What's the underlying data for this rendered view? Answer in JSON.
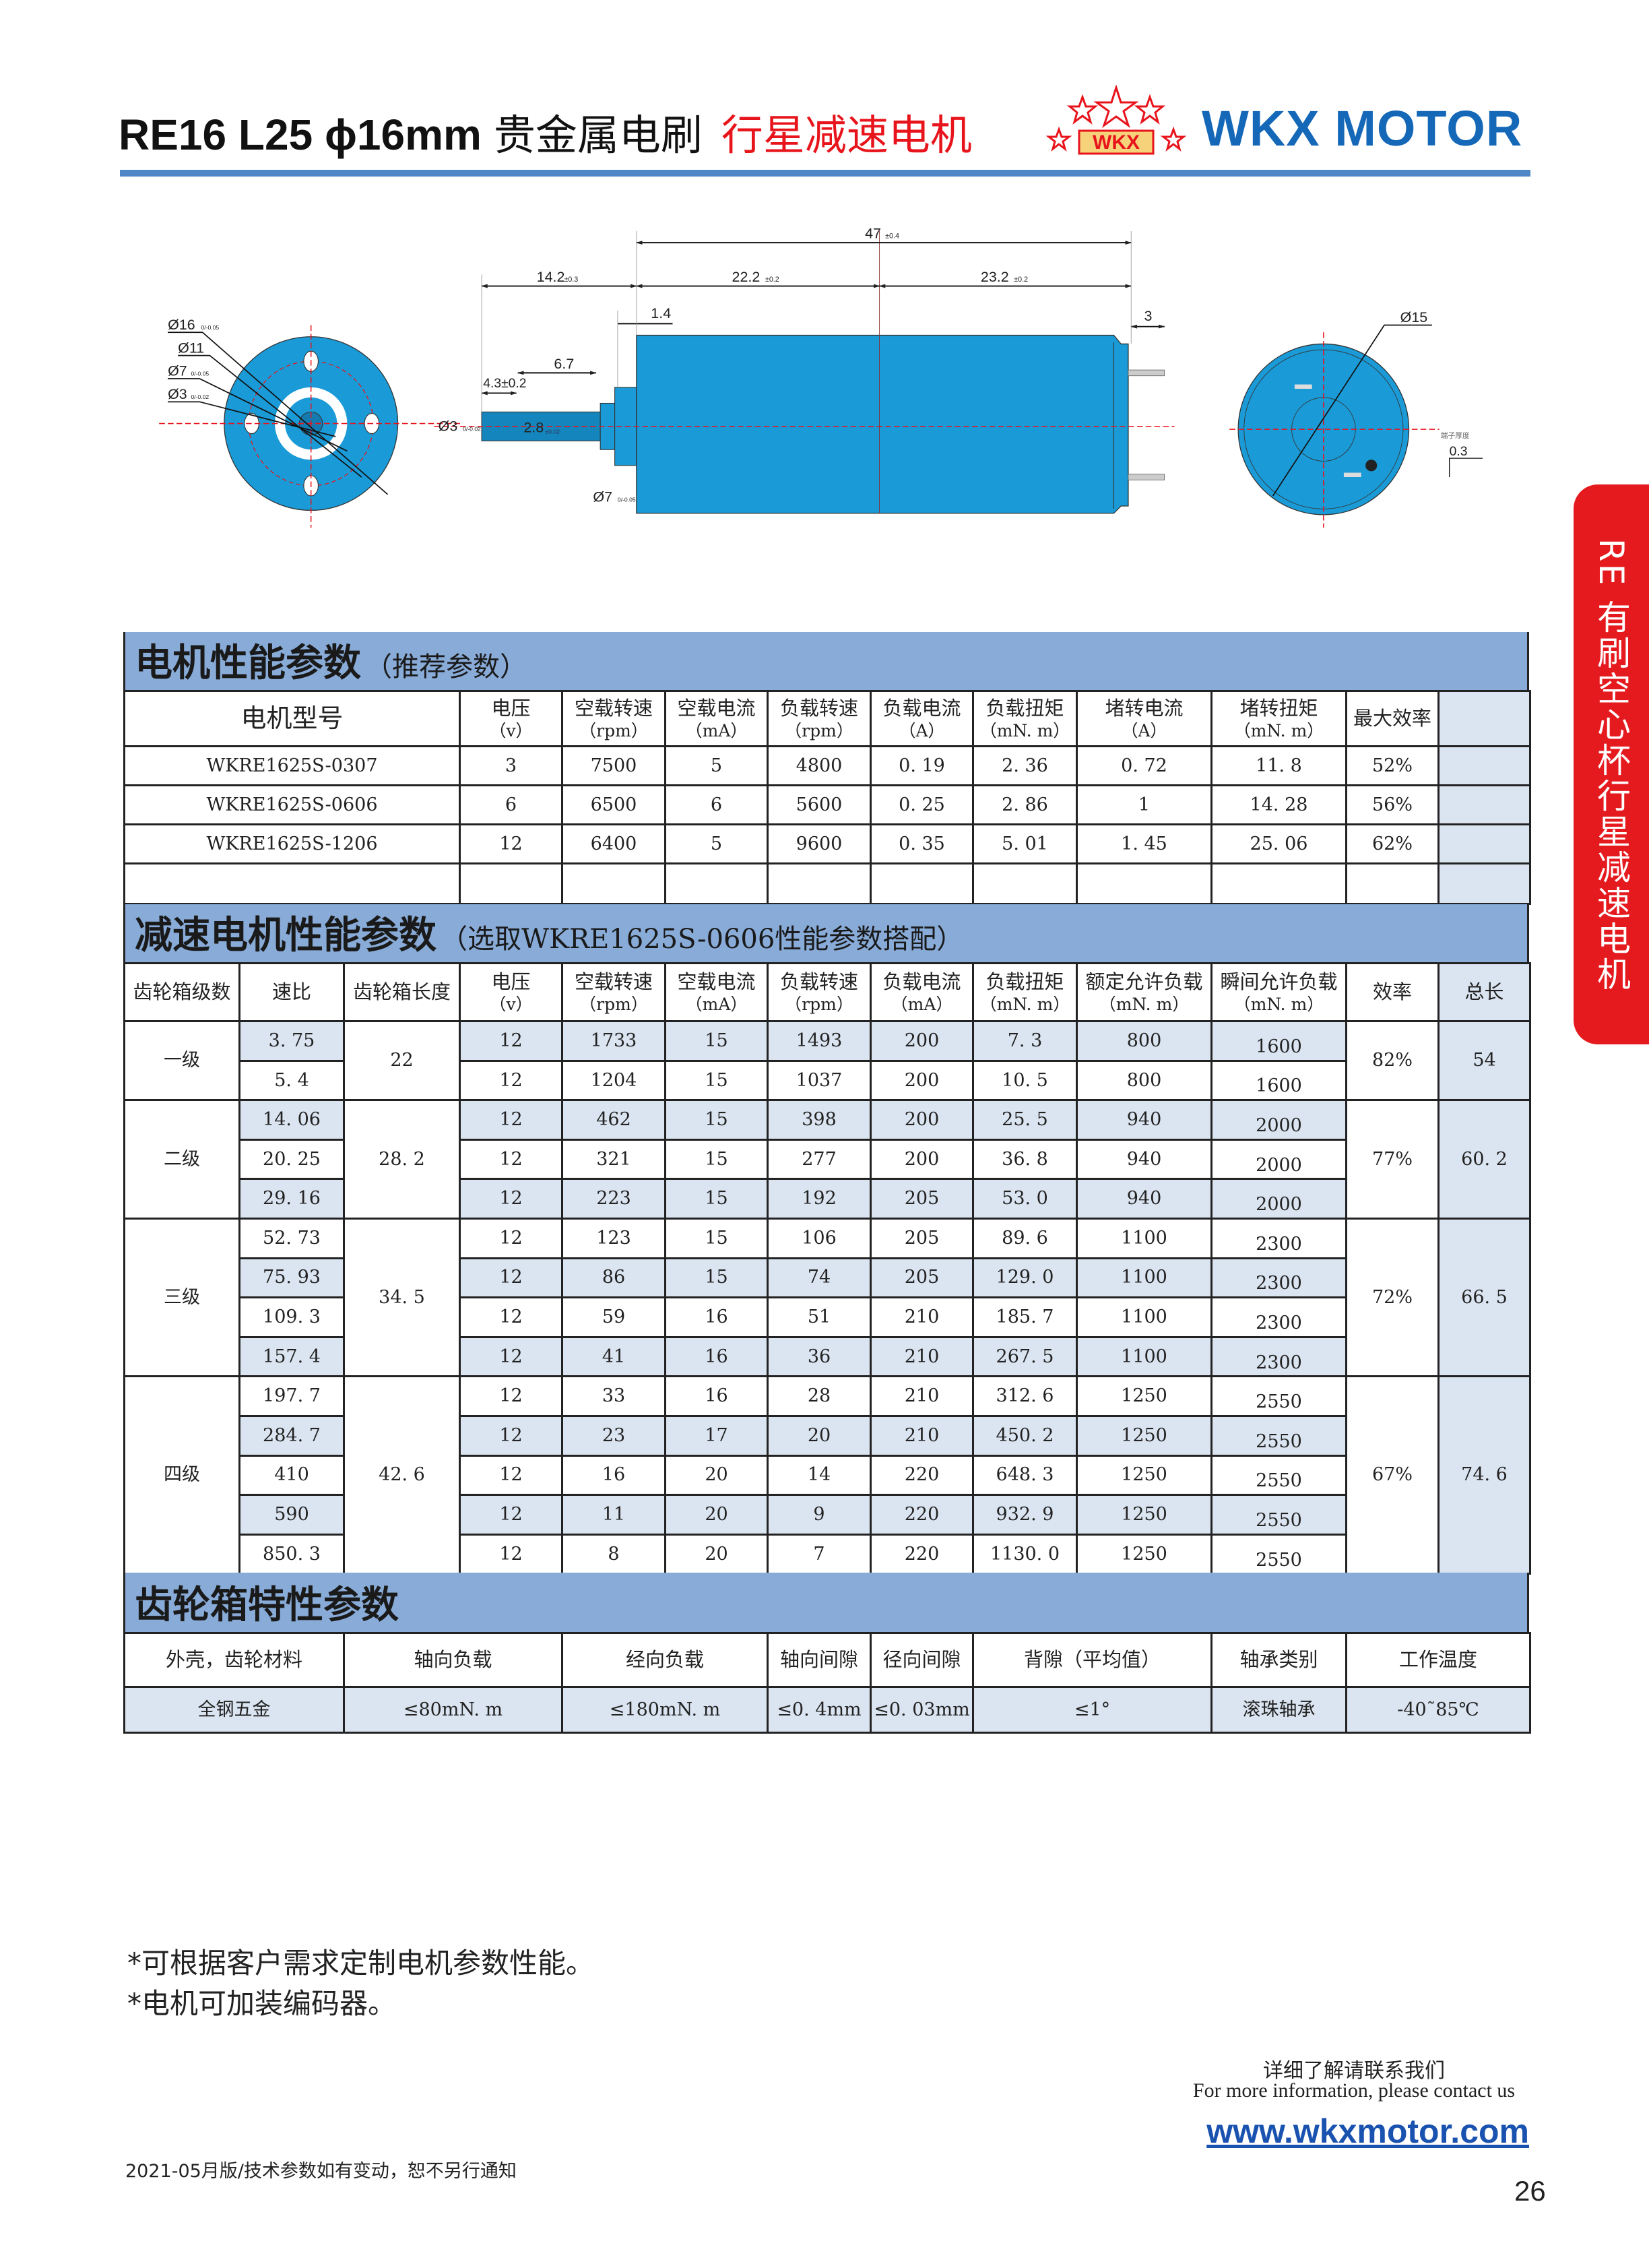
{
  "header": {
    "model": "RE16 L25 ϕ16mm",
    "desc": "贵金属电刷",
    "title_red": "行星减速电机",
    "logo_text": "WKX",
    "brand": "WKX MOTOR",
    "colors": {
      "brand_blue": "#1568b8",
      "accent_red": "#e8141c",
      "rule_blue": "#4f86c6"
    }
  },
  "drawing": {
    "front_view": {
      "d16": "Ø16",
      "d16_tol": "0/-0.05",
      "d11": "Ø11",
      "d7": "Ø7",
      "d7_tol": "0/-0.05",
      "d3": "Ø3",
      "d3_tol": "0/-0.02"
    },
    "side_view": {
      "total_length": "47",
      "total_length_tol": "±0.4",
      "shaft_length": "14.2",
      "shaft_length_tol": "±0.3",
      "section_a": "22.2",
      "section_a_tol": "±0.2",
      "section_b": "23.2",
      "section_b_tol": "±0.2",
      "boss": "1.4",
      "terminal": "3",
      "flat_length": "6.7",
      "flat_start": "4.3±0.2",
      "shaft_dia": "Ø3",
      "shaft_dia_tol": "0/-0.02",
      "flat_width": "2.8",
      "flat_width_tol": "±0.02",
      "boss_dia": "Ø7",
      "boss_dia_tol": "0/-0.05"
    },
    "rear_view": {
      "dia": "Ø15",
      "terminal_thickness_label": "端子厚度",
      "terminal_thickness": "0.3"
    },
    "colors": {
      "body": "#1a9ad6",
      "centerline": "#e8141c"
    }
  },
  "side_tab": {
    "text": "RE 有刷空心杯行星减速电机",
    "color": "#e51a1e"
  },
  "motor_section": {
    "title": "电机性能参数",
    "subtitle": "（推荐参数）",
    "columns": [
      {
        "name": "电机型号",
        "unit": ""
      },
      {
        "name": "电压",
        "unit": "（v）"
      },
      {
        "name": "空载转速",
        "unit": "（rpm）"
      },
      {
        "name": "空载电流",
        "unit": "（mA）"
      },
      {
        "name": "负载转速",
        "unit": "（rpm）"
      },
      {
        "name": "负载电流",
        "unit": "（A）"
      },
      {
        "name": "负载扭矩",
        "unit": "（mN. m）"
      },
      {
        "name": "堵转电流",
        "unit": "（A）"
      },
      {
        "name": "堵转扭矩",
        "unit": "（mN. m）"
      },
      {
        "name": "最大效率",
        "unit": ""
      },
      {
        "name": "",
        "unit": ""
      }
    ],
    "rows": [
      [
        "WKRE1625S-0307",
        "3",
        "7500",
        "5",
        "4800",
        "0. 19",
        "2. 36",
        "0. 72",
        "11. 8",
        "52%",
        ""
      ],
      [
        "WKRE1625S-0606",
        "6",
        "6500",
        "6",
        "5600",
        "0. 25",
        "2. 86",
        "1",
        "14. 28",
        "56%",
        ""
      ],
      [
        "WKRE1625S-1206",
        "12",
        "6400",
        "5",
        "9600",
        "0. 35",
        "5. 01",
        "1. 45",
        "25. 06",
        "62%",
        ""
      ],
      [
        "",
        "",
        "",
        "",
        "",
        "",
        "",
        "",
        "",
        "",
        ""
      ]
    ]
  },
  "gear_section": {
    "title": "减速电机性能参数",
    "subtitle": "（选取WKRE1625S-0606性能参数搭配）",
    "columns": [
      {
        "name": "齿轮箱级数",
        "unit": ""
      },
      {
        "name": "速比",
        "unit": ""
      },
      {
        "name": "齿轮箱长度",
        "unit": ""
      },
      {
        "name": "电压",
        "unit": "（v）"
      },
      {
        "name": "空载转速",
        "unit": "（rpm）"
      },
      {
        "name": "空载电流",
        "unit": "（mA）"
      },
      {
        "name": "负载转速",
        "unit": "（rpm）"
      },
      {
        "name": "负载电流",
        "unit": "（mA）"
      },
      {
        "name": "负载扭矩",
        "unit": "（mN. m）"
      },
      {
        "name": "额定允许负载",
        "unit": "（mN. m）"
      },
      {
        "name": "瞬间允许负载",
        "unit": "（mN. m）"
      },
      {
        "name": "效率",
        "unit": ""
      },
      {
        "name": "总长",
        "unit": ""
      }
    ],
    "stages": [
      {
        "stage": "一级",
        "gearbox_length": "22",
        "efficiency": "82%",
        "total_length": "54",
        "rows": [
          [
            "3. 75",
            "12",
            "1733",
            "15",
            "1493",
            "200",
            "7. 3",
            "800",
            "1600"
          ],
          [
            "5. 4",
            "12",
            "1204",
            "15",
            "1037",
            "200",
            "10. 5",
            "800",
            "1600"
          ]
        ]
      },
      {
        "stage": "二级",
        "gearbox_length": "28. 2",
        "efficiency": "77%",
        "total_length": "60. 2",
        "rows": [
          [
            "14. 06",
            "12",
            "462",
            "15",
            "398",
            "200",
            "25. 5",
            "940",
            "2000"
          ],
          [
            "20. 25",
            "12",
            "321",
            "15",
            "277",
            "200",
            "36. 8",
            "940",
            "2000"
          ],
          [
            "29. 16",
            "12",
            "223",
            "15",
            "192",
            "205",
            "53. 0",
            "940",
            "2000"
          ]
        ]
      },
      {
        "stage": "三级",
        "gearbox_length": "34. 5",
        "efficiency": "72%",
        "total_length": "66. 5",
        "rows": [
          [
            "52. 73",
            "12",
            "123",
            "15",
            "106",
            "205",
            "89. 6",
            "1100",
            "2300"
          ],
          [
            "75. 93",
            "12",
            "86",
            "15",
            "74",
            "205",
            "129. 0",
            "1100",
            "2300"
          ],
          [
            "109. 3",
            "12",
            "59",
            "16",
            "51",
            "210",
            "185. 7",
            "1100",
            "2300"
          ],
          [
            "157. 4",
            "12",
            "41",
            "16",
            "36",
            "210",
            "267. 5",
            "1100",
            "2300"
          ]
        ]
      },
      {
        "stage": "四级",
        "gearbox_length": "42. 6",
        "efficiency": "67%",
        "total_length": "74. 6",
        "rows": [
          [
            "197. 7",
            "12",
            "33",
            "16",
            "28",
            "210",
            "312. 6",
            "1250",
            "2550"
          ],
          [
            "284. 7",
            "12",
            "23",
            "17",
            "20",
            "210",
            "450. 2",
            "1250",
            "2550"
          ],
          [
            "410",
            "12",
            "16",
            "20",
            "14",
            "220",
            "648. 3",
            "1250",
            "2550"
          ],
          [
            "590",
            "12",
            "11",
            "20",
            "9",
            "220",
            "932. 9",
            "1250",
            "2550"
          ],
          [
            "850. 3",
            "12",
            "8",
            "20",
            "7",
            "220",
            "1130. 0",
            "1250",
            "2550"
          ]
        ]
      }
    ]
  },
  "gearbox_section": {
    "title": "齿轮箱特性参数",
    "headers": [
      "外壳，齿轮材料",
      "轴向负载",
      "经向负载",
      "轴向间隙",
      "径向间隙",
      "背隙（平均值）",
      "轴承类别",
      "工作温度"
    ],
    "values": [
      "全钢五金",
      "≤80mN. m",
      "≤180mN. m",
      "≤0. 4mm",
      "≤0. 03mm",
      "≤1°",
      "滚珠轴承",
      "-40˜85℃"
    ]
  },
  "notes": [
    "*可根据客户需求定制电机参数性能。",
    "*电机可加装编码器。"
  ],
  "contact": {
    "cn": "详细了解请联系我们",
    "en": "For more information, please contact us",
    "url": "www.wkxmotor.com"
  },
  "footer": {
    "text": "2021-05月版/技术参数如有变动，恕不另行通知",
    "page_number": "26"
  },
  "theme": {
    "band": "#88abd8",
    "shade": "#dbe5f1"
  }
}
